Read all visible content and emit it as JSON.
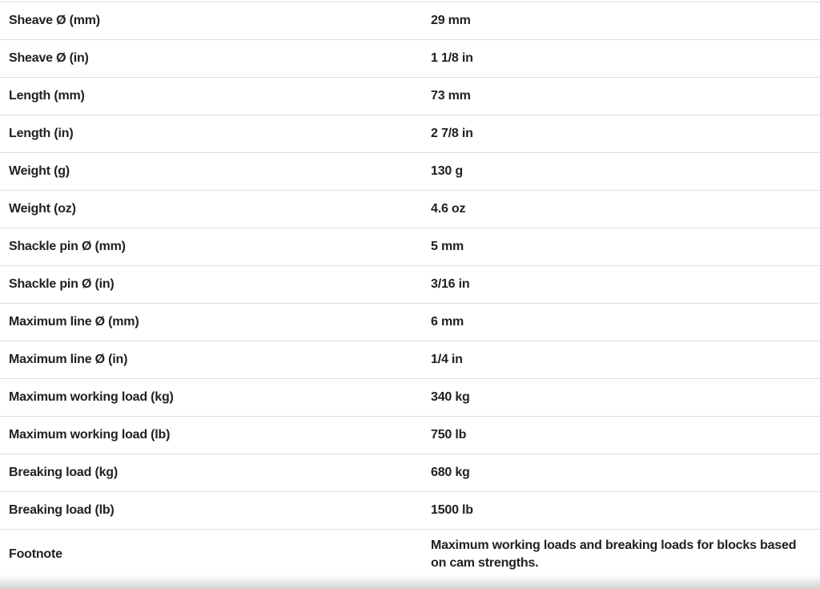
{
  "spec_table": {
    "rows": [
      {
        "label": "Sheave Ø (mm)",
        "value": "29 mm"
      },
      {
        "label": "Sheave Ø (in)",
        "value": "1 1/8 in"
      },
      {
        "label": "Length (mm)",
        "value": "73 mm"
      },
      {
        "label": "Length (in)",
        "value": "2 7/8 in"
      },
      {
        "label": "Weight (g)",
        "value": "130 g"
      },
      {
        "label": "Weight (oz)",
        "value": "4.6 oz"
      },
      {
        "label": "Shackle pin Ø (mm)",
        "value": "5 mm"
      },
      {
        "label": "Shackle pin Ø (in)",
        "value": "3/16 in"
      },
      {
        "label": "Maximum line Ø (mm)",
        "value": "6 mm"
      },
      {
        "label": "Maximum line Ø (in)",
        "value": "1/4 in"
      },
      {
        "label": "Maximum working load (kg)",
        "value": "340 kg"
      },
      {
        "label": "Maximum working load (lb)",
        "value": "750 lb"
      },
      {
        "label": "Breaking load (kg)",
        "value": "680 kg"
      },
      {
        "label": "Breaking load (lb)",
        "value": "1500 lb"
      },
      {
        "label": "Footnote",
        "value": "Maximum working loads and breaking loads for blocks based on cam strengths.",
        "multiline": true
      }
    ],
    "colors": {
      "text": "#212121",
      "divider": "#dedede",
      "background": "#ffffff"
    }
  }
}
